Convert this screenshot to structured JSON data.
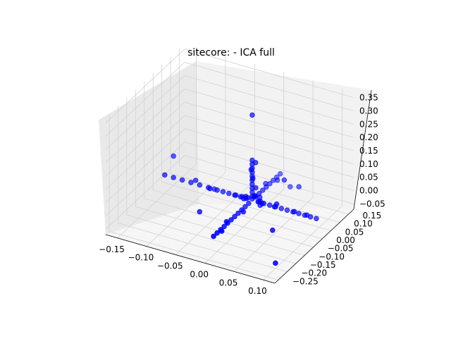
{
  "chart_data": {
    "type": "scatter",
    "projection": "3d",
    "title": "sitecore: - ICA full",
    "xlabel": "",
    "ylabel": "",
    "zlabel": "",
    "grid": true,
    "legend": "none",
    "x_ticks": [
      "−0.15",
      "−0.10",
      "−0.05",
      "0.00",
      "0.05",
      "0.10"
    ],
    "y_ticks": [
      "−0.25",
      "−0.20",
      "−0.15",
      "−0.10",
      "−0.05",
      "0.00",
      "0.05",
      "0.10",
      "0.15"
    ],
    "z_ticks": [
      "−0.05",
      "0.00",
      "0.05",
      "0.10",
      "0.15",
      "0.20",
      "0.25",
      "0.30",
      "0.35"
    ],
    "xlim": [
      -0.17,
      0.12
    ],
    "ylim": [
      -0.27,
      0.18
    ],
    "zlim": [
      -0.07,
      0.37
    ],
    "colors": {
      "marker": "#0000ff",
      "pane_back": "#e9e9e9",
      "pane_side": "#f2f2f2",
      "pane_floor": "#f6f6f6",
      "grid": "#d2d2d2"
    },
    "series": [
      {
        "points": [
          [
            0.0,
            0.0,
            0.32
          ],
          [
            0.0,
            0.0,
            0.15
          ],
          [
            0.0,
            0.0,
            0.135
          ],
          [
            0.0,
            0.0,
            0.12
          ],
          [
            0.0,
            0.0,
            0.105
          ],
          [
            0.0,
            0.0,
            0.09
          ],
          [
            0.0,
            0.0,
            0.075
          ],
          [
            0.0,
            0.0,
            0.06
          ],
          [
            0.0,
            0.0,
            0.045
          ],
          [
            0.0,
            0.0,
            0.03
          ],
          [
            0.0,
            0.0,
            0.015
          ],
          [
            0.0,
            0.0,
            0.005
          ],
          [
            0.004,
            0.006,
            0.14
          ],
          [
            -0.003,
            0.004,
            0.11
          ],
          [
            0.002,
            -0.003,
            0.085
          ],
          [
            0.006,
            0.0,
            0.05
          ],
          [
            -0.15,
            0.0,
            0.0
          ],
          [
            -0.135,
            0.0,
            0.0
          ],
          [
            -0.12,
            0.0,
            0.0
          ],
          [
            -0.105,
            0.0,
            0.0
          ],
          [
            -0.09,
            0.0,
            0.0
          ],
          [
            -0.075,
            0.0,
            0.0
          ],
          [
            -0.06,
            0.0,
            0.0
          ],
          [
            -0.05,
            0.0,
            0.0
          ],
          [
            -0.04,
            0.0,
            0.0
          ],
          [
            -0.03,
            0.0,
            0.0
          ],
          [
            -0.02,
            0.0,
            0.0
          ],
          [
            -0.01,
            0.0,
            0.0
          ],
          [
            0.01,
            0.0,
            0.0
          ],
          [
            0.02,
            0.0,
            0.0
          ],
          [
            0.03,
            0.0,
            0.0
          ],
          [
            0.04,
            0.0,
            0.0
          ],
          [
            0.05,
            0.0,
            0.0
          ],
          [
            0.06,
            0.0,
            0.0
          ],
          [
            0.07,
            0.0,
            0.0
          ],
          [
            0.08,
            0.0,
            0.0
          ],
          [
            0.09,
            0.0,
            0.0
          ],
          [
            0.1,
            0.0,
            0.0
          ],
          [
            0.11,
            0.0,
            0.0
          ],
          [
            -0.1,
            0.01,
            0.005
          ],
          [
            -0.07,
            -0.008,
            0.004
          ],
          [
            -0.03,
            0.006,
            -0.004
          ],
          [
            0.04,
            -0.006,
            0.004
          ],
          [
            0.07,
            0.008,
            -0.004
          ],
          [
            0.095,
            -0.004,
            0.006
          ],
          [
            0.0,
            0.16,
            0.0
          ],
          [
            0.0,
            0.14,
            0.0
          ],
          [
            0.0,
            0.12,
            0.0
          ],
          [
            0.0,
            0.1,
            0.0
          ],
          [
            0.0,
            0.08,
            0.0
          ],
          [
            0.0,
            0.06,
            0.0
          ],
          [
            0.0,
            0.04,
            0.0
          ],
          [
            0.0,
            0.02,
            0.0
          ],
          [
            0.0,
            -0.02,
            0.0
          ],
          [
            0.0,
            -0.04,
            0.0
          ],
          [
            0.0,
            -0.06,
            0.0
          ],
          [
            0.0,
            -0.08,
            0.0
          ],
          [
            0.0,
            -0.1,
            0.0
          ],
          [
            0.0,
            -0.12,
            0.0
          ],
          [
            0.0,
            -0.14,
            0.0
          ],
          [
            0.0,
            -0.16,
            0.0
          ],
          [
            0.0,
            -0.18,
            0.0
          ],
          [
            0.0,
            -0.2,
            0.0
          ],
          [
            0.0,
            -0.22,
            0.0
          ],
          [
            0.005,
            -0.19,
            0.004
          ],
          [
            -0.005,
            -0.13,
            -0.004
          ],
          [
            0.006,
            -0.07,
            0.003
          ],
          [
            -0.004,
            0.09,
            0.004
          ],
          [
            0.004,
            0.13,
            -0.003
          ],
          [
            0.01,
            0.01,
            0.01
          ],
          [
            -0.012,
            0.015,
            -0.008
          ],
          [
            0.015,
            -0.012,
            0.012
          ],
          [
            -0.01,
            -0.015,
            0.008
          ],
          [
            0.008,
            0.02,
            -0.012
          ],
          [
            0.02,
            -0.01,
            0.006
          ],
          [
            -0.02,
            0.01,
            -0.006
          ],
          [
            0.005,
            -0.005,
            0.02
          ],
          [
            0.012,
            0.005,
            -0.015
          ],
          [
            -0.008,
            -0.01,
            0.015
          ],
          [
            0.06,
            -0.06,
            0.06
          ],
          [
            -0.08,
            0.05,
            -0.04
          ],
          [
            0.05,
            0.1,
            0.02
          ],
          [
            0.08,
            -0.15,
            0.03
          ],
          [
            0.02,
            0.15,
            -0.03
          ],
          [
            -0.06,
            -0.1,
            -0.02
          ],
          [
            0.1,
            -0.2,
            -0.05
          ],
          [
            -0.15,
            0.05,
            0.04
          ],
          [
            0.04,
            0.05,
            0.07
          ],
          [
            0.02,
            -0.05,
            0.06
          ]
        ]
      }
    ]
  }
}
